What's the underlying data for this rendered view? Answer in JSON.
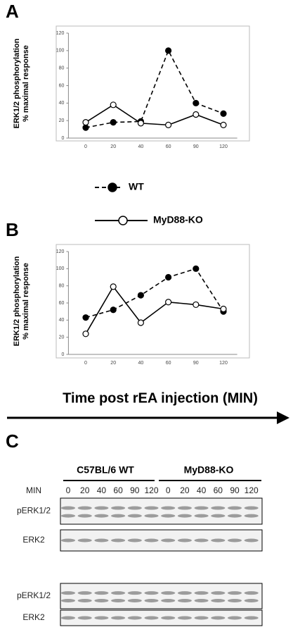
{
  "panels": [
    "A",
    "B",
    "C"
  ],
  "chart_data": [
    {
      "type": "line",
      "ylabel": [
        "ERK1/2 phosphorylation",
        "% maximal response"
      ],
      "categories": [
        "0",
        "20",
        "40",
        "60",
        "90",
        "120"
      ],
      "ylim": [
        0,
        120
      ],
      "yticks": [
        0,
        20,
        40,
        60,
        80,
        100,
        120
      ],
      "series": [
        {
          "name": "WT",
          "color": "#000000",
          "dashed": true,
          "marker": "filled",
          "values": [
            12,
            18,
            19,
            100,
            40,
            28
          ]
        },
        {
          "name": "MyD88-KO",
          "color": "#000000",
          "dashed": false,
          "marker": "open",
          "values": [
            18,
            38,
            17,
            15,
            27,
            15
          ]
        }
      ]
    },
    {
      "type": "line",
      "ylabel": [
        "ERK1/2 phosphorylation",
        "% maximal response"
      ],
      "categories": [
        "0",
        "20",
        "40",
        "60",
        "90",
        "120"
      ],
      "ylim": [
        0,
        120
      ],
      "yticks": [
        0,
        20,
        40,
        60,
        80,
        100,
        120
      ],
      "series": [
        {
          "name": "WT",
          "color": "#000000",
          "dashed": true,
          "marker": "filled",
          "values": [
            43,
            52,
            69,
            90,
            100,
            50
          ]
        },
        {
          "name": "MyD88-KO",
          "color": "#000000",
          "dashed": false,
          "marker": "open",
          "values": [
            24,
            79,
            37,
            61,
            58,
            53
          ]
        }
      ]
    }
  ],
  "arrow_label": "Time post rEA injection (MIN)",
  "blot": {
    "groups": [
      "C57BL/6 WT",
      "MyD88-KO"
    ],
    "min_label": "MIN",
    "lanes": [
      "0",
      "20",
      "40",
      "60",
      "90",
      "120",
      "0",
      "20",
      "40",
      "60",
      "90",
      "120"
    ],
    "rows": [
      "pERK1/2",
      "ERK2",
      "pERK1/2",
      "ERK2"
    ]
  }
}
